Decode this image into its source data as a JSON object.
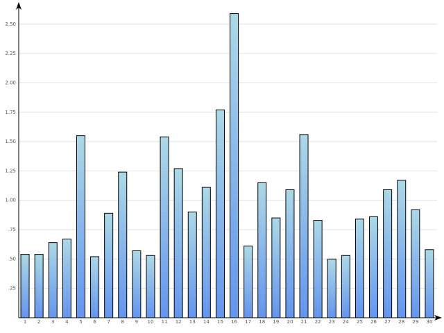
{
  "chart_data": {
    "type": "bar",
    "categories": [
      "1",
      "2",
      "3",
      "4",
      "5",
      "6",
      "7",
      "8",
      "9",
      "10",
      "11",
      "12",
      "13",
      "14",
      "15",
      "16",
      "17",
      "18",
      "19",
      "20",
      "21",
      "22",
      "23",
      "24",
      "25",
      "26",
      "27",
      "28",
      "29",
      "30"
    ],
    "values": [
      0.54,
      0.54,
      0.64,
      0.67,
      1.55,
      0.52,
      0.89,
      1.24,
      0.57,
      0.53,
      1.54,
      1.27,
      0.9,
      1.11,
      1.77,
      2.59,
      0.61,
      1.15,
      0.85,
      1.09,
      1.56,
      0.83,
      0.5,
      0.53,
      0.84,
      0.86,
      1.09,
      1.17,
      0.92,
      0.58
    ],
    "gradient": [
      "#add8e6",
      "#6495ed"
    ],
    "ylim": [
      0,
      2.65
    ],
    "yticks": [
      {
        "value": 0.25,
        "label": ".25"
      },
      {
        "value": 0.5,
        "label": ".50"
      },
      {
        "value": 0.75,
        "label": ".75"
      },
      {
        "value": 1,
        "label": "1.00"
      },
      {
        "value": 1.25,
        "label": "1.25"
      },
      {
        "value": 1.5,
        "label": "1.50"
      },
      {
        "value": 1.75,
        "label": "1.75"
      },
      {
        "value": 2,
        "label": "2.00"
      },
      {
        "value": 2.25,
        "label": "2.25"
      },
      {
        "value": 2.5,
        "label": "2.50"
      }
    ],
    "grid": true
  }
}
